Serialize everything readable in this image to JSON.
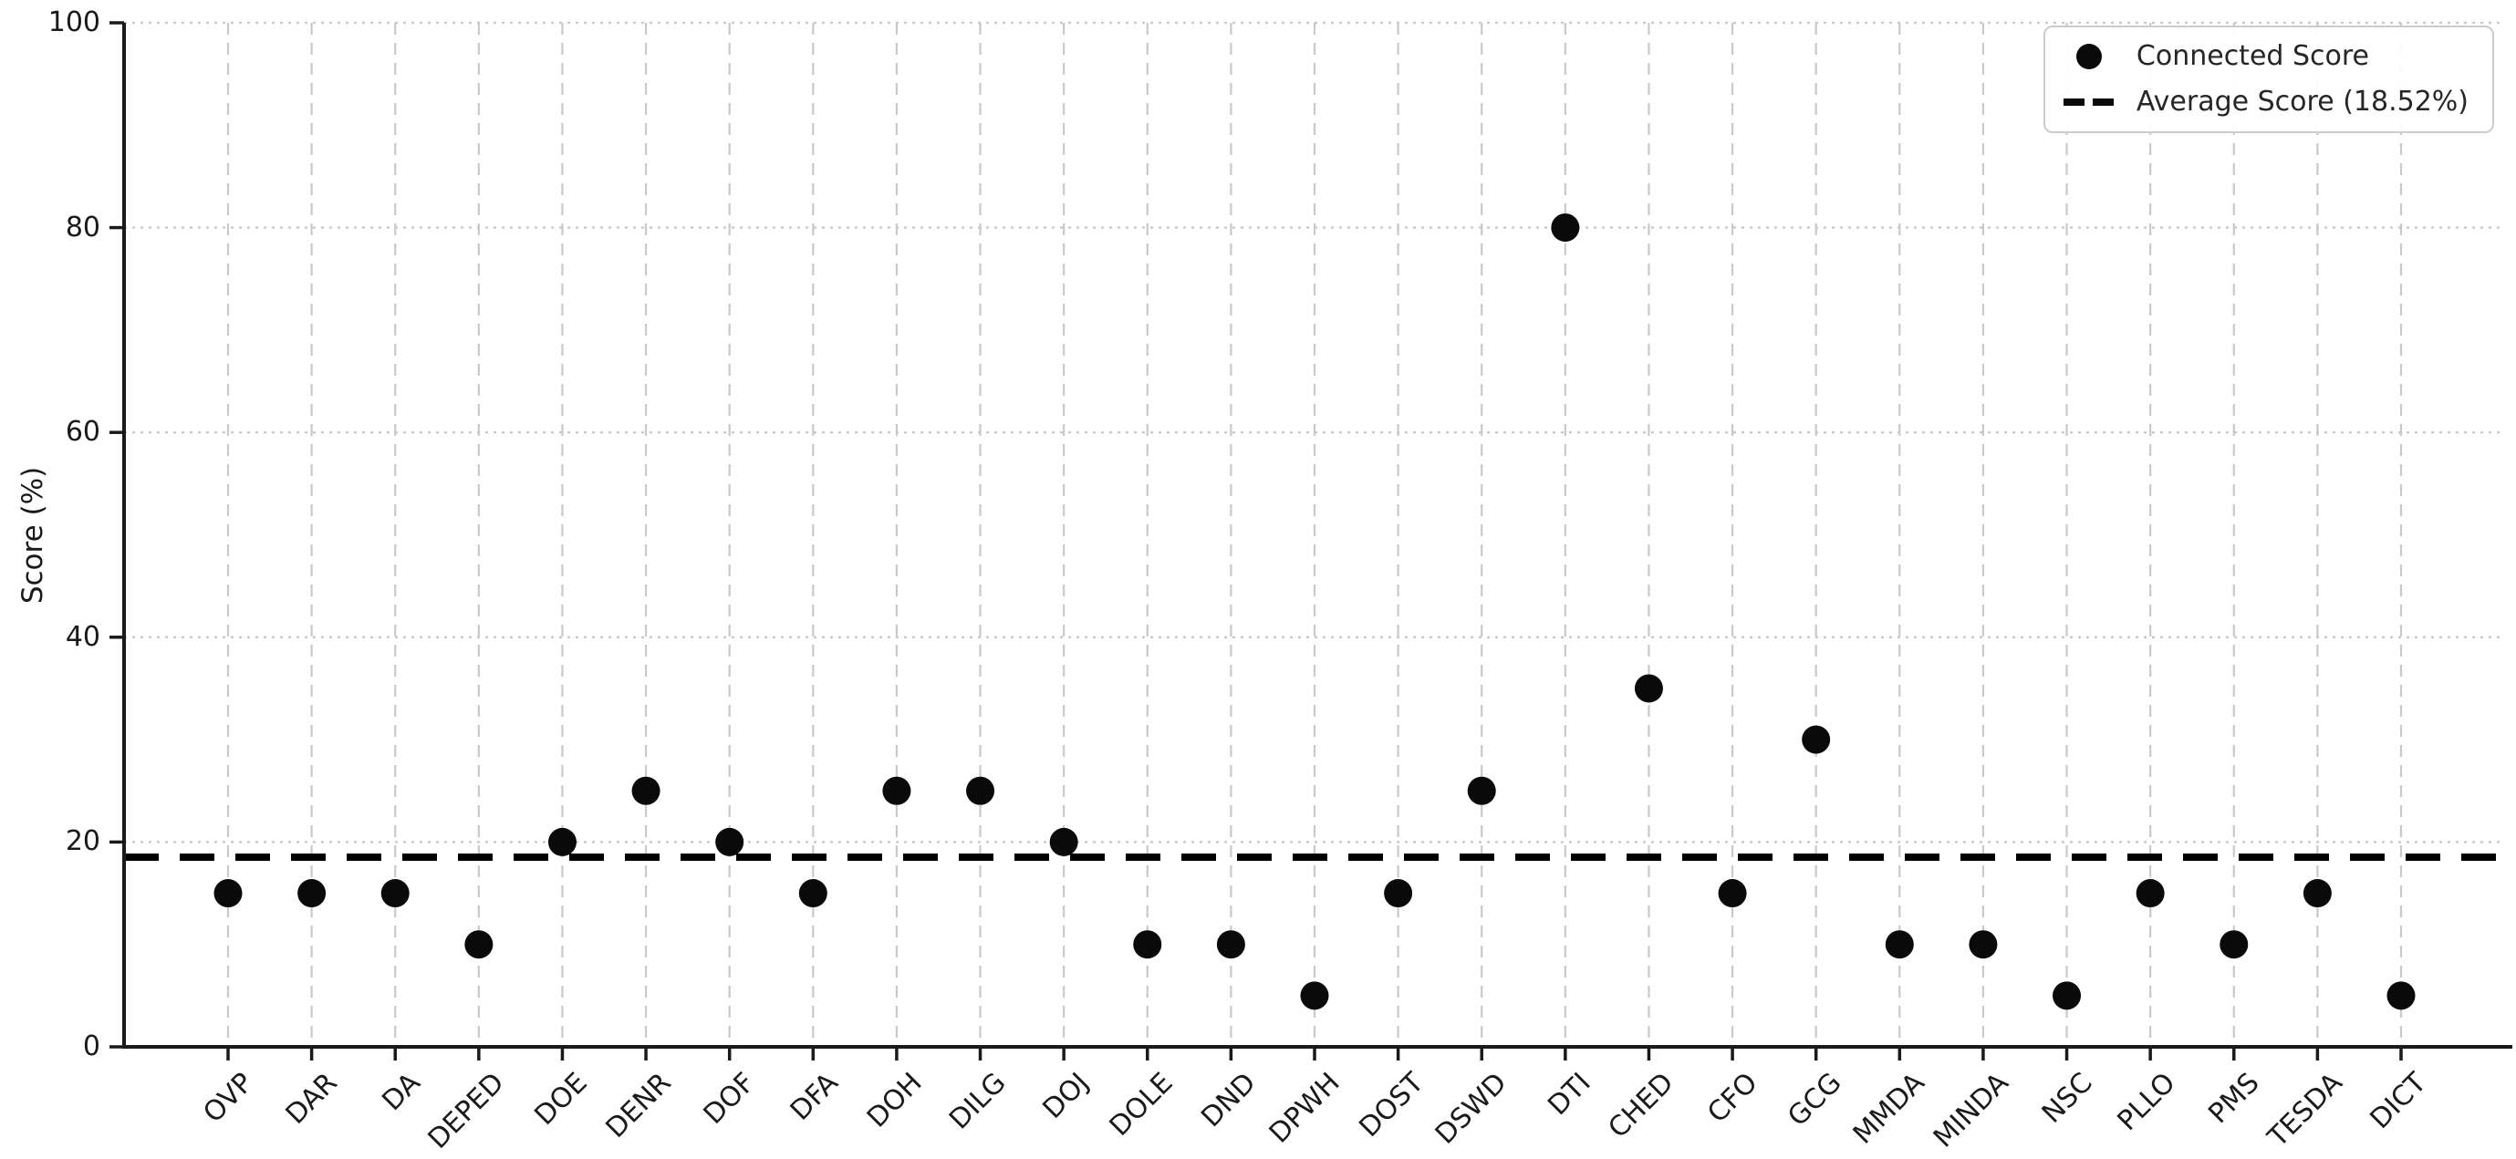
{
  "chart_data": {
    "type": "scatter",
    "title": "",
    "xlabel": "",
    "ylabel": "Score (%)",
    "ylim": [
      0,
      100
    ],
    "yticks": [
      0,
      20,
      40,
      60,
      80,
      100
    ],
    "grid": {
      "vertical": "dashed",
      "horizontal": "dotted",
      "visible": true
    },
    "legend_position": "upper right",
    "categories": [
      "OVP",
      "DAR",
      "DA",
      "DEPED",
      "DOE",
      "DENR",
      "DOF",
      "DFA",
      "DOH",
      "DILG",
      "DOJ",
      "DOLE",
      "DND",
      "DPWH",
      "DOST",
      "DSWD",
      "DTI",
      "CHED",
      "CFO",
      "GCG",
      "MMDA",
      "MINDA",
      "NSC",
      "PLLO",
      "PMS",
      "TESDA",
      "DICT"
    ],
    "series": [
      {
        "name": "Connected Score",
        "marker": "circle",
        "values": [
          15,
          15,
          15,
          10,
          20,
          25,
          20,
          15,
          25,
          25,
          20,
          10,
          10,
          5,
          15,
          25,
          80,
          35,
          15,
          30,
          10,
          10,
          5,
          15,
          10,
          15,
          5
        ]
      }
    ],
    "average": {
      "label": "Average Score (18.52%)",
      "value": 18.52,
      "line_style": "dashed"
    }
  },
  "colors": {
    "background": "#ffffff",
    "point": "#0a0a0a",
    "average_line": "#000000",
    "grid": "#c9c9c9",
    "spine": "#1a1a1a",
    "tick_text": "#1a1a1a",
    "legend_border": "#cccccc",
    "legend_text": "#262626"
  }
}
